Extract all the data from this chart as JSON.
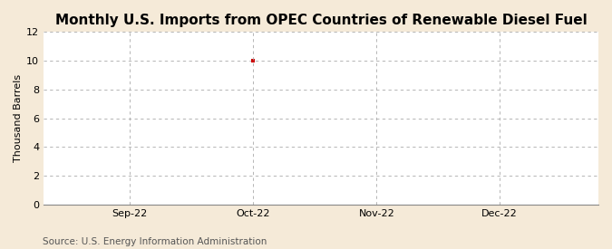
{
  "title": "Monthly U.S. Imports from OPEC Countries of Renewable Diesel Fuel",
  "ylabel": "Thousand Barrels",
  "source_text": "Source: U.S. Energy Information Administration",
  "background_color": "#f5ead8",
  "plot_background_color": "#ffffff",
  "ylim": [
    0,
    12
  ],
  "yticks": [
    0,
    2,
    4,
    6,
    8,
    10,
    12
  ],
  "x_tick_labels": [
    "Sep-22",
    "Oct-22",
    "Nov-22",
    "Dec-22"
  ],
  "x_tick_positions": [
    1,
    2,
    3,
    4
  ],
  "data_x": [
    2
  ],
  "data_y": [
    10
  ],
  "data_color": "#cc0000",
  "grid_color": "#aaaaaa",
  "grid_linestyle": "--",
  "grid_linewidth": 0.6,
  "title_fontsize": 11,
  "axis_label_fontsize": 8,
  "tick_fontsize": 8,
  "source_fontsize": 7.5,
  "marker": "s",
  "marker_size": 3,
  "xlim": [
    0.3,
    4.8
  ]
}
